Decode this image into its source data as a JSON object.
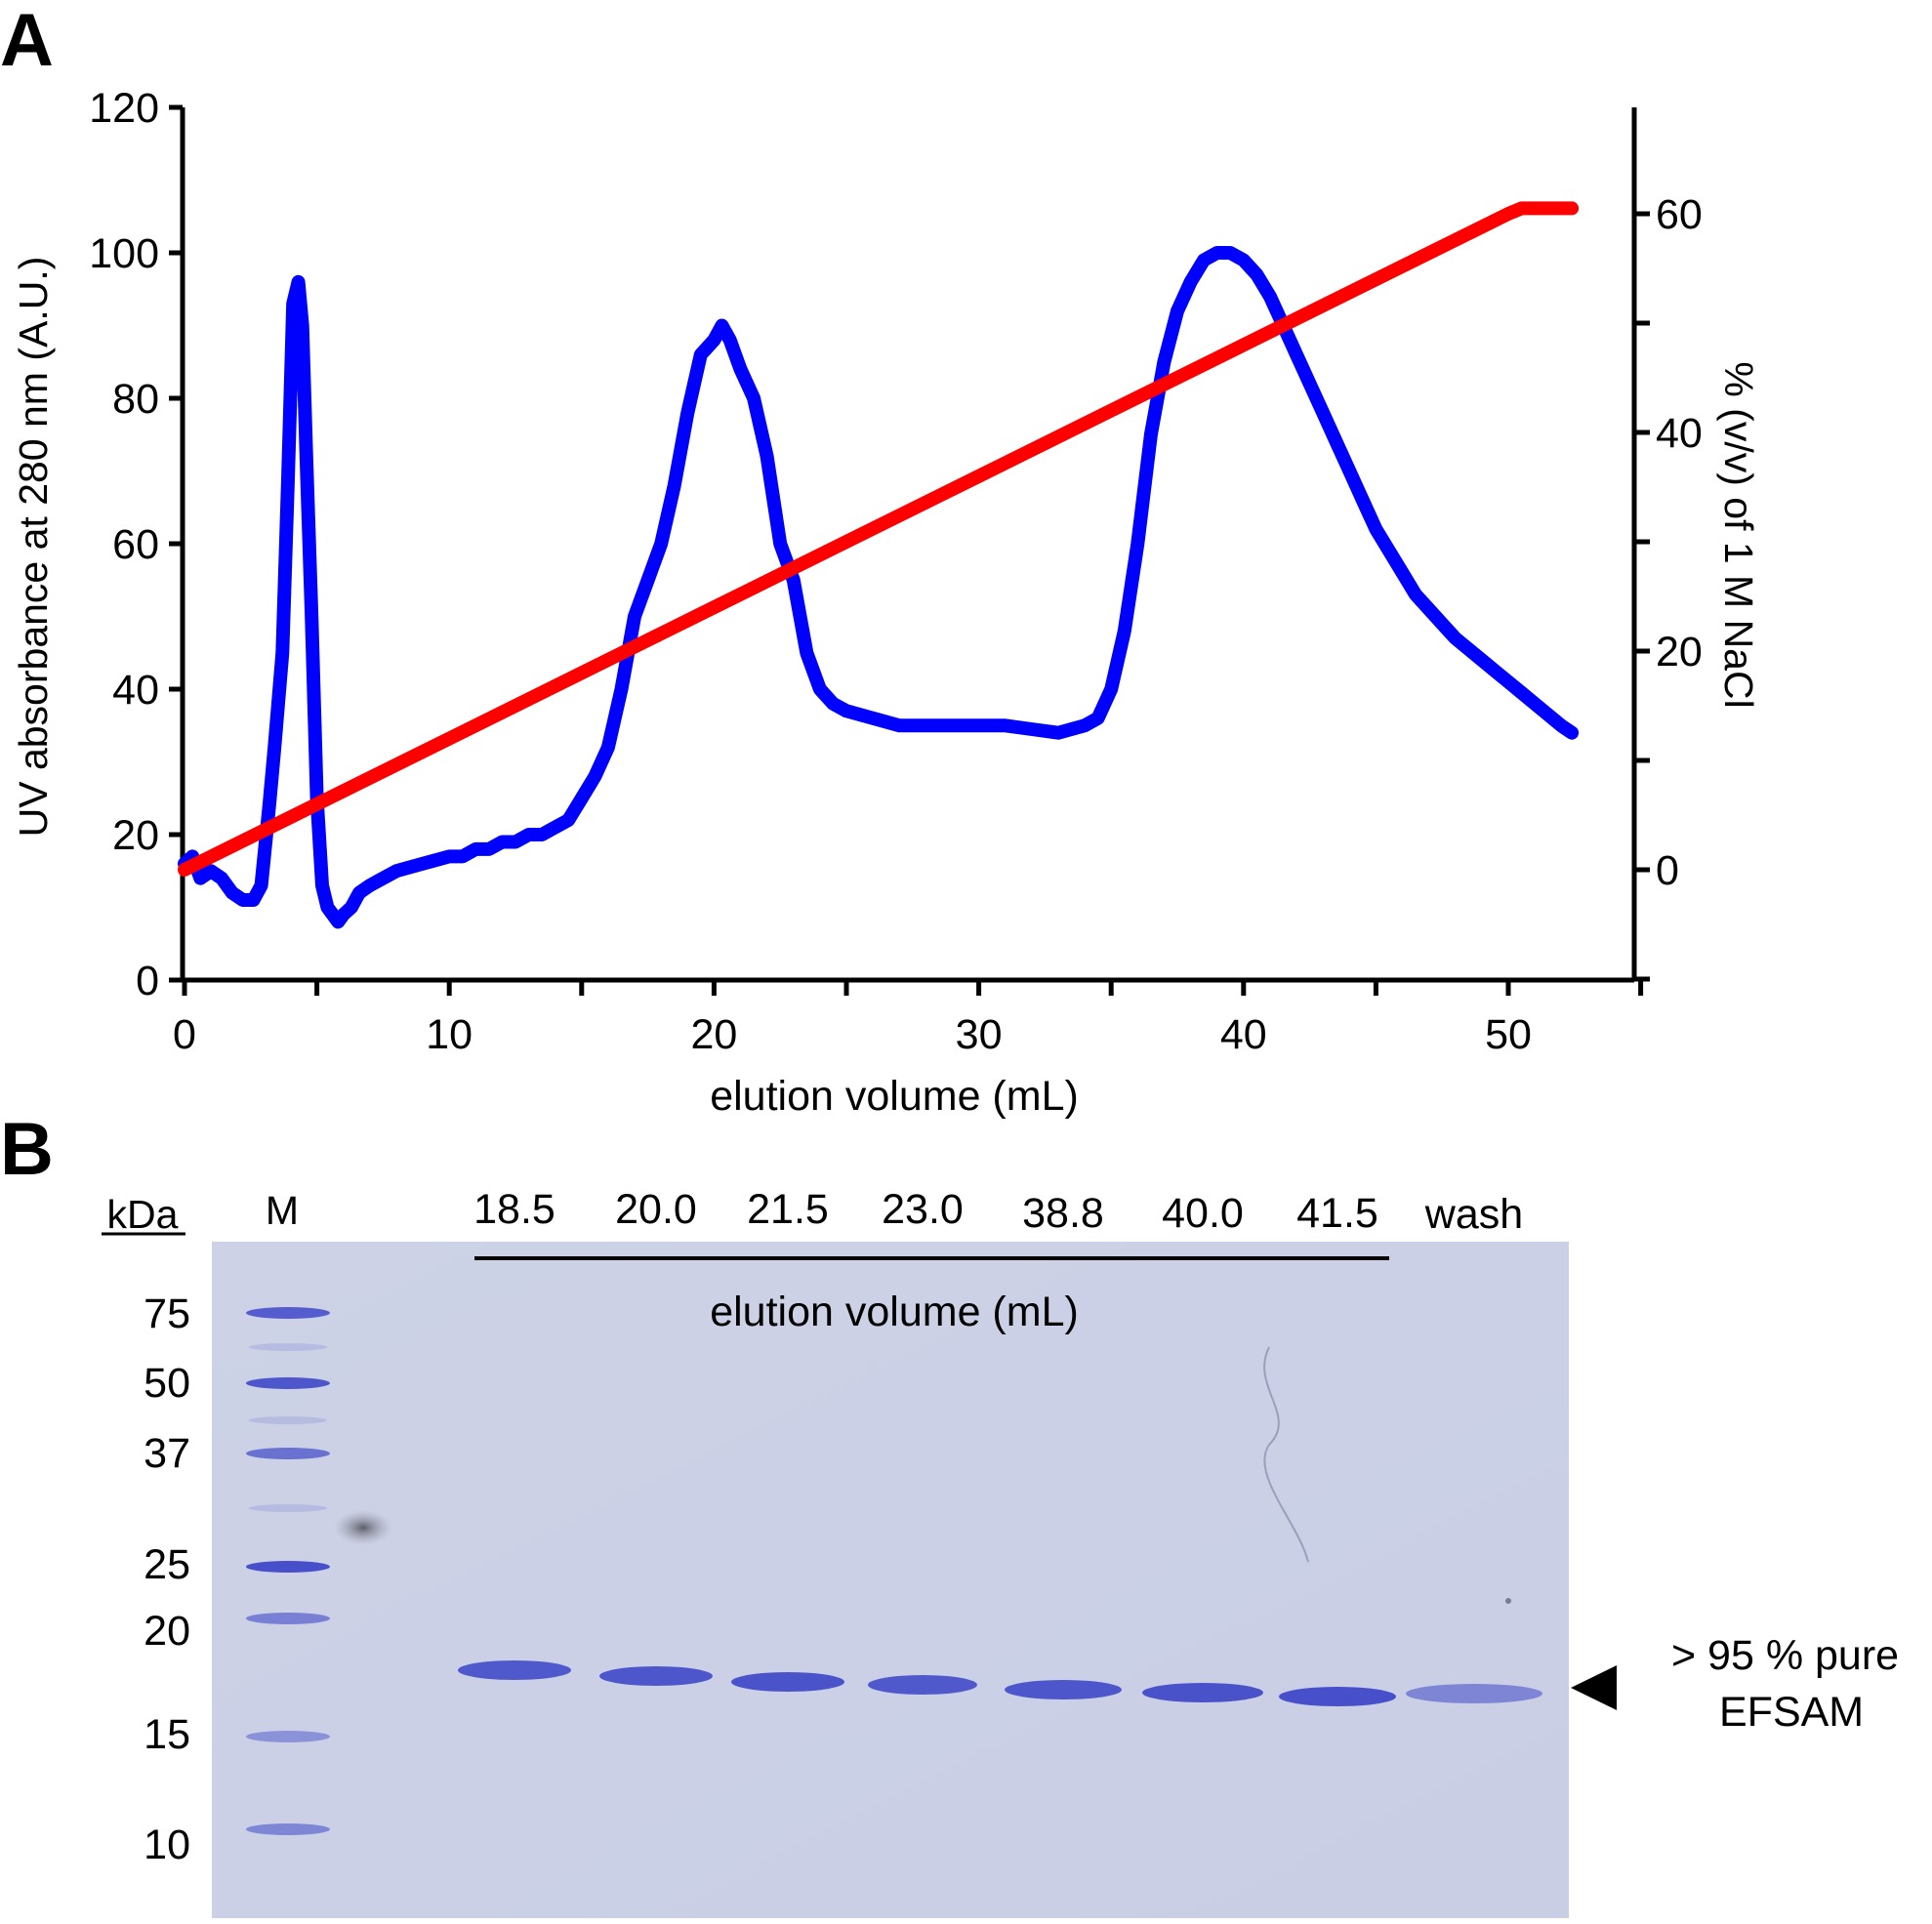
{
  "figure": {
    "panel_a_letter": "A",
    "panel_b_letter": "B"
  },
  "chart_data": {
    "type": "line",
    "xlabel": "elution volume (mL)",
    "ylabel": "UV absorbance at 280 nm (A.U.)",
    "y2label": "% (v/v) of 1 M NaCl",
    "xlim": [
      0,
      55
    ],
    "ylim": [
      0,
      120
    ],
    "y2lim": [
      -10,
      70
    ],
    "x_ticks": [
      0,
      10,
      20,
      30,
      40,
      50
    ],
    "y_ticks": [
      0,
      20,
      40,
      60,
      80,
      100,
      120
    ],
    "y2_ticks_labeled": [
      0,
      20,
      40,
      60
    ],
    "y2_ticks_minor": [
      -10,
      10,
      30,
      50,
      70
    ],
    "series": [
      {
        "name": "UV absorbance at 280 nm",
        "axis": "left",
        "color": "#0000ff",
        "x": [
          0,
          0.3,
          0.6,
          1.0,
          1.4,
          1.8,
          2.2,
          2.6,
          2.9,
          3.2,
          3.4,
          3.7,
          3.9,
          4.1,
          4.3,
          4.45,
          4.6,
          4.8,
          5.0,
          5.2,
          5.4,
          5.6,
          5.8,
          6.0,
          6.3,
          6.6,
          7.0,
          7.5,
          8.0,
          9.0,
          10.0,
          10.5,
          11.0,
          11.5,
          12.0,
          12.5,
          13.0,
          13.5,
          14.0,
          14.5,
          15.0,
          15.5,
          16.0,
          16.5,
          17.0,
          17.5,
          18.0,
          18.5,
          19.0,
          19.5,
          20.0,
          20.3,
          20.6,
          21.0,
          21.5,
          22.0,
          22.5,
          23.0,
          23.5,
          24.0,
          24.5,
          25.0,
          26.0,
          27.0,
          28.0,
          29.0,
          30.0,
          31.0,
          32.0,
          33.0,
          33.5,
          34.0,
          34.5,
          35.0,
          35.5,
          36.0,
          36.5,
          37.0,
          37.5,
          38.0,
          38.5,
          39.0,
          39.5,
          40.0,
          40.5,
          41.0,
          41.5,
          42.0,
          42.5,
          43.0,
          43.5,
          44.0,
          44.5,
          45.0,
          45.5,
          46.0,
          46.5,
          47.0,
          47.5,
          48.0,
          48.5,
          49.0,
          49.5,
          50.0,
          50.5,
          51.0,
          51.5,
          52.0,
          52.4
        ],
        "y": [
          16,
          17,
          14,
          15,
          14,
          12,
          11,
          11,
          13,
          24,
          32,
          45,
          68,
          93,
          96,
          90,
          72,
          50,
          25,
          13,
          10,
          9,
          8,
          9,
          10,
          12,
          13,
          14,
          15,
          16,
          17,
          17,
          18,
          18,
          19,
          19,
          20,
          20,
          21,
          22,
          25,
          28,
          32,
          40,
          50,
          55,
          60,
          68,
          78,
          86,
          88,
          90,
          88,
          84,
          80,
          72,
          60,
          55,
          45,
          40,
          38,
          37,
          36,
          35,
          35,
          35,
          35,
          35,
          34.5,
          34,
          34.5,
          35,
          36,
          40,
          48,
          60,
          75,
          85,
          92,
          96,
          99,
          100,
          100,
          99,
          97,
          94,
          90,
          86,
          82,
          78,
          74,
          70,
          66,
          62,
          59,
          56,
          53,
          51,
          49,
          47,
          45.5,
          44,
          42.5,
          41,
          39.5,
          38,
          36.5,
          35,
          34
        ]
      },
      {
        "name": "% (v/v) of 1 M NaCl",
        "axis": "right",
        "color": "#ff0000",
        "x": [
          0,
          10,
          20,
          30,
          40,
          50,
          50.5,
          52.4
        ],
        "y": [
          0,
          12,
          24,
          36,
          48,
          60,
          60.5,
          60.5
        ]
      }
    ]
  },
  "gel": {
    "kda_header": "kDa",
    "marker_header": "M",
    "marker_labels": [
      "75",
      "50",
      "37",
      "25",
      "20",
      "15",
      "10"
    ],
    "lane_labels": [
      "18.5",
      "20.0",
      "21.5",
      "23.0",
      "38.8",
      "40.0",
      "41.5",
      "wash"
    ],
    "bracket_label": "elution volume (mL)",
    "annotation_line1": "> 95 % pure",
    "annotation_line2": "EFSAM",
    "background_color": "#ccd1e6",
    "band_color": "#3f48c8"
  }
}
